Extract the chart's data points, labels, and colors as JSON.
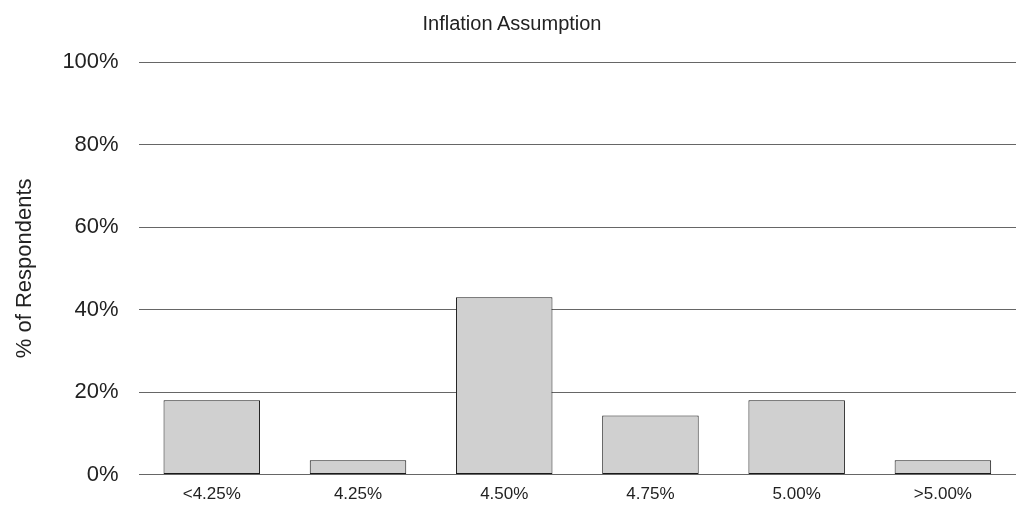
{
  "chart_data": {
    "type": "bar",
    "title": "Inflation Assumption",
    "ylabel": "% of Respondents",
    "categories": [
      "<4.25%",
      "4.25%",
      "4.50%",
      "4.75%",
      "5.00%",
      ">5.00%"
    ],
    "values": [
      18,
      3.5,
      43,
      14.3,
      18,
      3.5
    ],
    "color": "#d0d0d0",
    "ylim": [
      0,
      100
    ],
    "yticks": [
      {
        "value": 0,
        "label": "0%"
      },
      {
        "value": 20,
        "label": "20%"
      },
      {
        "value": 40,
        "label": "40%"
      },
      {
        "value": 60,
        "label": "60%"
      },
      {
        "value": 80,
        "label": "80%"
      },
      {
        "value": 100,
        "label": "100%"
      }
    ],
    "grid": "y",
    "legend": false
  }
}
